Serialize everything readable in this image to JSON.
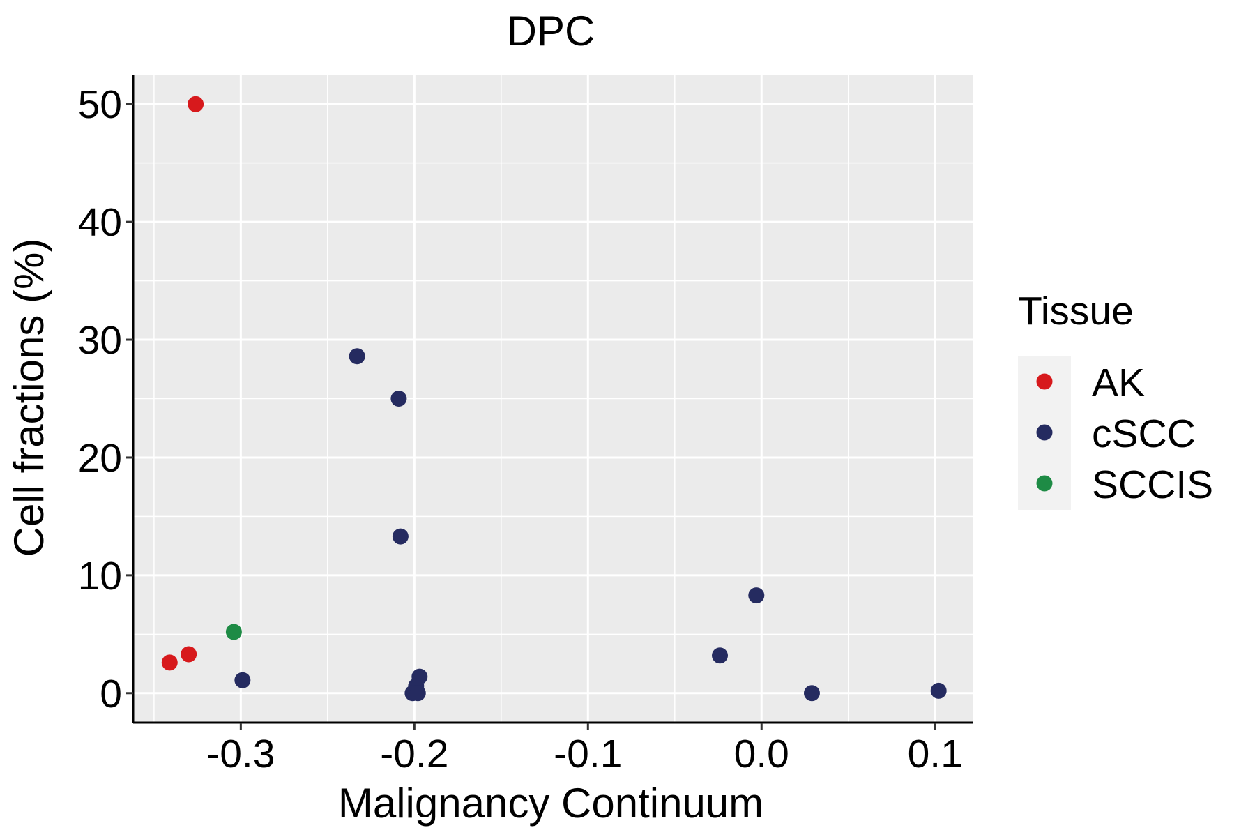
{
  "chart_data": {
    "type": "scatter",
    "title": "DPC",
    "xlabel": "Malignancy Continuum",
    "ylabel": "Cell fractions (%)",
    "xlim": [
      -0.362,
      0.122
    ],
    "ylim": [
      -2.5,
      52.5
    ],
    "x_ticks": [
      -0.3,
      -0.2,
      -0.1,
      0.0,
      0.1
    ],
    "x_tick_labels": [
      "-0.3",
      "-0.2",
      "-0.1",
      "0.0",
      "0.1"
    ],
    "y_ticks": [
      0,
      10,
      20,
      30,
      40,
      50
    ],
    "y_tick_labels": [
      "0",
      "10",
      "20",
      "30",
      "40",
      "50"
    ],
    "x_minor_ticks": [
      -0.35,
      -0.25,
      -0.15,
      -0.05,
      0.05
    ],
    "y_minor_ticks": [
      5,
      15,
      25,
      35,
      45
    ],
    "grid": true,
    "legend": {
      "title": "Tissue",
      "position": "right",
      "entries": [
        "AK",
        "cSCC",
        "SCCIS"
      ]
    },
    "series": [
      {
        "name": "AK",
        "color": "#d7191c",
        "points": [
          {
            "x": -0.326,
            "y": 50.0
          },
          {
            "x": -0.341,
            "y": 2.6
          },
          {
            "x": -0.33,
            "y": 3.3
          }
        ]
      },
      {
        "name": "cSCC",
        "color": "#252b60",
        "points": [
          {
            "x": -0.233,
            "y": 28.6
          },
          {
            "x": -0.209,
            "y": 25.0
          },
          {
            "x": -0.208,
            "y": 13.3
          },
          {
            "x": -0.299,
            "y": 1.1
          },
          {
            "x": -0.197,
            "y": 1.4
          },
          {
            "x": -0.199,
            "y": 0.6
          },
          {
            "x": -0.201,
            "y": 0.0
          },
          {
            "x": -0.198,
            "y": 0.0
          },
          {
            "x": -0.003,
            "y": 8.3
          },
          {
            "x": -0.024,
            "y": 3.2
          },
          {
            "x": 0.029,
            "y": 0.0
          },
          {
            "x": 0.102,
            "y": 0.2
          }
        ]
      },
      {
        "name": "SCCIS",
        "color": "#1e8b45",
        "points": [
          {
            "x": -0.304,
            "y": 5.2
          }
        ]
      }
    ]
  }
}
